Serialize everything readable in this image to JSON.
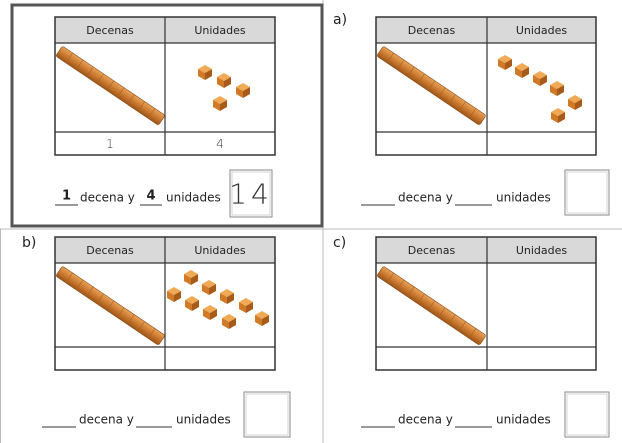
{
  "headers": [
    "Decenas",
    "Unidades"
  ],
  "sentence": {
    "tens": "decena y",
    "units": "unidades"
  },
  "panels": [
    {
      "rods": 1,
      "cubes": 4,
      "answers": {
        "tens": "1",
        "units": "4",
        "total": "14"
      }
    },
    {
      "label": "a)",
      "rods": 1,
      "cubes": 6
    },
    {
      "label": "b)",
      "rods": 1,
      "cubes": 9
    },
    {
      "label": "c)",
      "rods": 1,
      "cubes": 0
    }
  ]
}
